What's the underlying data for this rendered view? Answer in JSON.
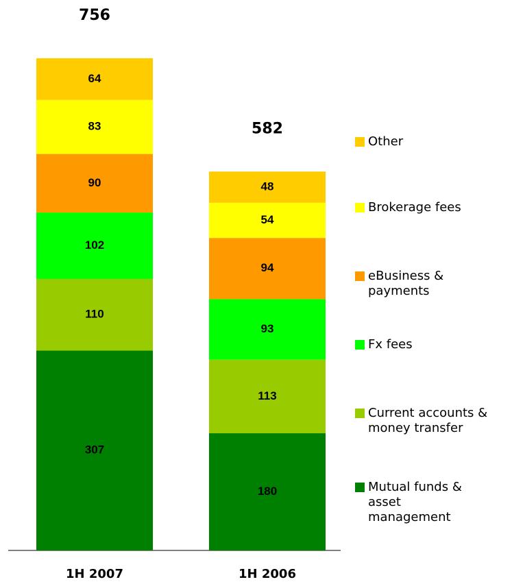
{
  "chart_data": {
    "type": "stacked_bar",
    "categories": [
      "1H 2007",
      "1H 2006"
    ],
    "totals": [
      756,
      582
    ],
    "series": [
      {
        "name": "Mutual funds & asset management",
        "color": "#008000",
        "values": [
          307,
          180
        ]
      },
      {
        "name": "Current accounts & money transfer",
        "color": "#99cc00",
        "values": [
          110,
          113
        ]
      },
      {
        "name": "Fx fees",
        "color": "#00ff00",
        "values": [
          102,
          93
        ]
      },
      {
        "name": "eBusiness & payments",
        "color": "#ff9900",
        "values": [
          90,
          94
        ]
      },
      {
        "name": "Brokerage fees",
        "color": "#ffff00",
        "values": [
          83,
          54
        ]
      },
      {
        "name": "Other",
        "color": "#ffcc00",
        "values": [
          64,
          48
        ]
      }
    ]
  }
}
